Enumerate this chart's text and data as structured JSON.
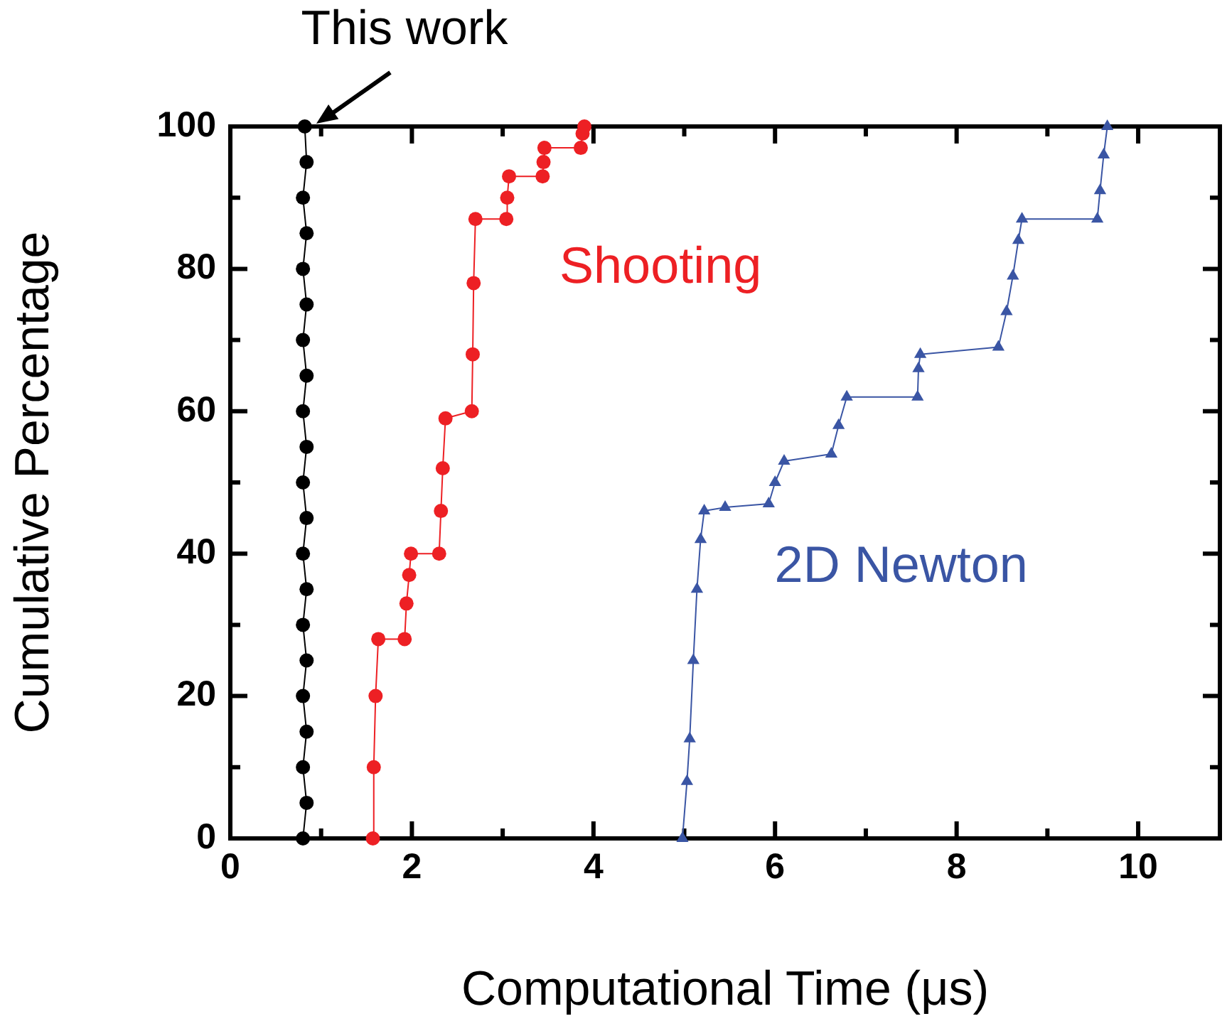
{
  "chart_data": {
    "type": "line",
    "xlabel": "Computational Time (μs)",
    "ylabel": "Cumulative Percentage",
    "xlim": [
      0,
      10.9
    ],
    "ylim": [
      0,
      100
    ],
    "xticks": [
      0,
      {
        "value": 1,
        "label": null
      },
      2,
      {
        "value": 3,
        "label": null
      },
      4,
      {
        "value": 5,
        "label": null
      },
      6,
      {
        "value": 7,
        "label": null
      },
      8,
      {
        "value": 9,
        "label": null
      },
      10
    ],
    "yticks": [
      0,
      {
        "value": 10,
        "label": null
      },
      20,
      {
        "value": 30,
        "label": null
      },
      40,
      {
        "value": 50,
        "label": null
      },
      60,
      {
        "value": 70,
        "label": null
      },
      80,
      {
        "value": 90,
        "label": null
      },
      100
    ],
    "grid": false,
    "legend": false,
    "line_style": "solid",
    "annotations": [
      {
        "text": "This work",
        "x": 0.9,
        "y": 100
      }
    ],
    "series": [
      {
        "color": "#000000",
        "marker": "circle",
        "x": [
          0.8,
          0.84,
          0.8,
          0.84,
          0.8,
          0.84,
          0.8,
          0.84,
          0.8,
          0.84,
          0.8,
          0.84,
          0.8,
          0.84,
          0.8,
          0.84,
          0.8,
          0.84,
          0.8,
          0.84,
          0.82
        ],
        "values": [
          0,
          5,
          10,
          15,
          20,
          25,
          30,
          35,
          40,
          45,
          50,
          55,
          60,
          65,
          70,
          75,
          80,
          85,
          90,
          95,
          100
        ]
      },
      {
        "name": "Shooting",
        "color": "#ed2024",
        "marker": "circle",
        "x": [
          1.57,
          1.58,
          1.6,
          1.63,
          1.92,
          1.94,
          1.97,
          1.99,
          2.3,
          2.32,
          2.34,
          2.37,
          2.66,
          2.67,
          2.68,
          2.7,
          3.04,
          3.05,
          3.07,
          3.44,
          3.45,
          3.46,
          3.86,
          3.88,
          3.9
        ],
        "values": [
          0,
          10,
          20,
          28,
          28,
          33,
          37,
          40,
          40,
          46,
          52,
          59,
          60,
          68,
          78,
          87,
          87,
          90,
          93,
          93,
          95,
          97,
          97,
          99,
          100
        ]
      },
      {
        "name": "2D Newton",
        "color": "#3a55a4",
        "marker": "triangle",
        "x": [
          4.98,
          5.03,
          5.06,
          5.1,
          5.14,
          5.18,
          5.22,
          5.45,
          5.93,
          6.0,
          6.1,
          6.62,
          6.7,
          6.79,
          7.57,
          7.58,
          7.6,
          8.46,
          8.55,
          8.62,
          8.68,
          8.72,
          9.55,
          9.58,
          9.62,
          9.66
        ],
        "values": [
          0,
          8,
          14,
          25,
          35,
          42,
          46,
          46.5,
          47,
          50,
          53,
          54,
          58,
          62,
          62,
          66,
          68,
          69,
          74,
          79,
          84,
          87,
          87,
          91,
          96,
          100
        ]
      }
    ]
  }
}
